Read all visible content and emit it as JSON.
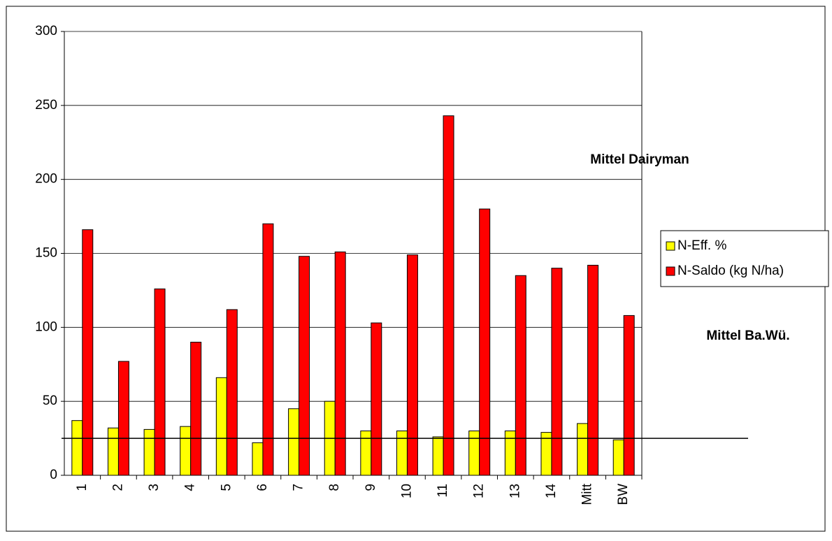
{
  "chart_data": {
    "type": "bar",
    "categories": [
      "1",
      "2",
      "3",
      "4",
      "5",
      "6",
      "7",
      "8",
      "9",
      "10",
      "11",
      "12",
      "13",
      "14",
      "Mitt",
      "BW"
    ],
    "series": [
      {
        "name": "N-Eff. %",
        "color": "#ffff00",
        "values": [
          37,
          32,
          31,
          33,
          66,
          22,
          45,
          50,
          30,
          30,
          26,
          30,
          30,
          29,
          35,
          24
        ]
      },
      {
        "name": "N-Saldo (kg N/ha)",
        "color": "#ff0000",
        "values": [
          166,
          77,
          126,
          90,
          112,
          170,
          148,
          151,
          103,
          149,
          243,
          180,
          135,
          140,
          142,
          108
        ]
      }
    ],
    "ylim": [
      0,
      300
    ],
    "yticks": [
      0,
      50,
      100,
      150,
      200,
      250,
      300
    ],
    "grid": true,
    "reference_line": 25,
    "annotations": [
      "Mittel Dairyman",
      "Mittel Ba.Wü."
    ],
    "legend": "right"
  }
}
